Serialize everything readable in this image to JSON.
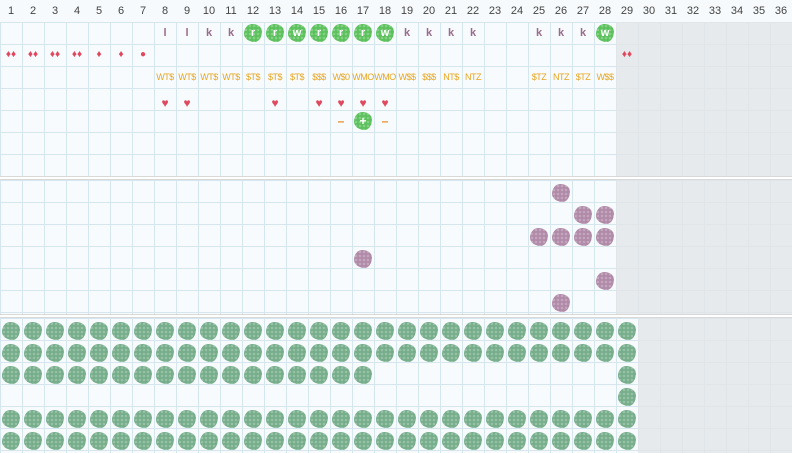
{
  "day_headers": [
    "1",
    "2",
    "3",
    "4",
    "5",
    "6",
    "7",
    "8",
    "9",
    "10",
    "11",
    "12",
    "13",
    "14",
    "15",
    "16",
    "17",
    "18",
    "19",
    "20",
    "21",
    "22",
    "23",
    "24",
    "25",
    "26",
    "27",
    "28",
    "29",
    "30",
    "31",
    "32",
    "33",
    "34",
    "35",
    "36"
  ],
  "colors": {
    "green": "#5cc15c",
    "sage": "#76ad8a",
    "mauve": "#b08aa8",
    "red": "#e0485e",
    "orange": "#e8a521"
  },
  "section1": {
    "letters_row": [
      {
        "day": 8,
        "text": "l"
      },
      {
        "day": 9,
        "text": "l"
      },
      {
        "day": 10,
        "text": "k"
      },
      {
        "day": 11,
        "text": "k"
      },
      {
        "day": 12,
        "text": "r",
        "badge": true
      },
      {
        "day": 13,
        "text": "r",
        "badge": true
      },
      {
        "day": 14,
        "text": "w",
        "badge": true
      },
      {
        "day": 15,
        "text": "r",
        "badge": true
      },
      {
        "day": 16,
        "text": "r",
        "badge": true
      },
      {
        "day": 17,
        "text": "r",
        "badge": true
      },
      {
        "day": 18,
        "text": "w",
        "badge": true
      },
      {
        "day": 19,
        "text": "k"
      },
      {
        "day": 20,
        "text": "k"
      },
      {
        "day": 21,
        "text": "k"
      },
      {
        "day": 22,
        "text": "k"
      },
      {
        "day": 25,
        "text": "k"
      },
      {
        "day": 26,
        "text": "k"
      },
      {
        "day": 27,
        "text": "k"
      },
      {
        "day": 28,
        "text": "w",
        "badge": true
      }
    ],
    "drops_row": [
      {
        "day": 1,
        "text": "♦♦"
      },
      {
        "day": 2,
        "text": "♦♦"
      },
      {
        "day": 3,
        "text": "♦♦"
      },
      {
        "day": 4,
        "text": "♦♦"
      },
      {
        "day": 5,
        "text": "♦"
      },
      {
        "day": 6,
        "text": "♦"
      },
      {
        "day": 7,
        "text": "●"
      },
      {
        "day": 29,
        "text": "♦♦"
      }
    ],
    "tags_row": [
      {
        "day": 8,
        "text": "WT$"
      },
      {
        "day": 9,
        "text": "WT$"
      },
      {
        "day": 10,
        "text": "WT$"
      },
      {
        "day": 11,
        "text": "WT$"
      },
      {
        "day": 12,
        "text": "$T$"
      },
      {
        "day": 13,
        "text": "$T$"
      },
      {
        "day": 14,
        "text": "$T$"
      },
      {
        "day": 15,
        "text": "$$$"
      },
      {
        "day": 16,
        "text": "W$0"
      },
      {
        "day": 17,
        "text": "WMO"
      },
      {
        "day": 18,
        "text": "WMO"
      },
      {
        "day": 19,
        "text": "W$$"
      },
      {
        "day": 20,
        "text": "$$$"
      },
      {
        "day": 21,
        "text": "NT$"
      },
      {
        "day": 22,
        "text": "NTZ"
      },
      {
        "day": 25,
        "text": "$TZ"
      },
      {
        "day": 26,
        "text": "NTZ"
      },
      {
        "day": 27,
        "text": "$TZ"
      },
      {
        "day": 28,
        "text": "W$$"
      }
    ],
    "hearts_row": [
      8,
      9,
      13,
      15,
      16,
      17,
      18
    ],
    "heart_glyph": "♥",
    "marks_row": [
      {
        "day": 16,
        "text": "–"
      },
      {
        "day": 17,
        "text": "+",
        "badge": true
      },
      {
        "day": 18,
        "text": "–"
      }
    ]
  },
  "section2": {
    "mauve_cells": [
      {
        "row": 0,
        "day": 26
      },
      {
        "row": 1,
        "day": 27
      },
      {
        "row": 1,
        "day": 28
      },
      {
        "row": 2,
        "day": 25
      },
      {
        "row": 2,
        "day": 26
      },
      {
        "row": 2,
        "day": 27
      },
      {
        "row": 2,
        "day": 28
      },
      {
        "row": 3,
        "day": 17
      },
      {
        "row": 4,
        "day": 28
      },
      {
        "row": 5,
        "day": 26
      }
    ]
  },
  "section3": {
    "rows": [
      {
        "from": 1,
        "to": 29
      },
      {
        "from": 1,
        "to": 29
      },
      {
        "from": 1,
        "to": 17,
        "extra": [
          29
        ]
      },
      {
        "from": 0,
        "to": -1,
        "extra": [
          29
        ]
      },
      {
        "from": 1,
        "to": 29
      },
      {
        "from": 1,
        "to": 29
      }
    ]
  }
}
